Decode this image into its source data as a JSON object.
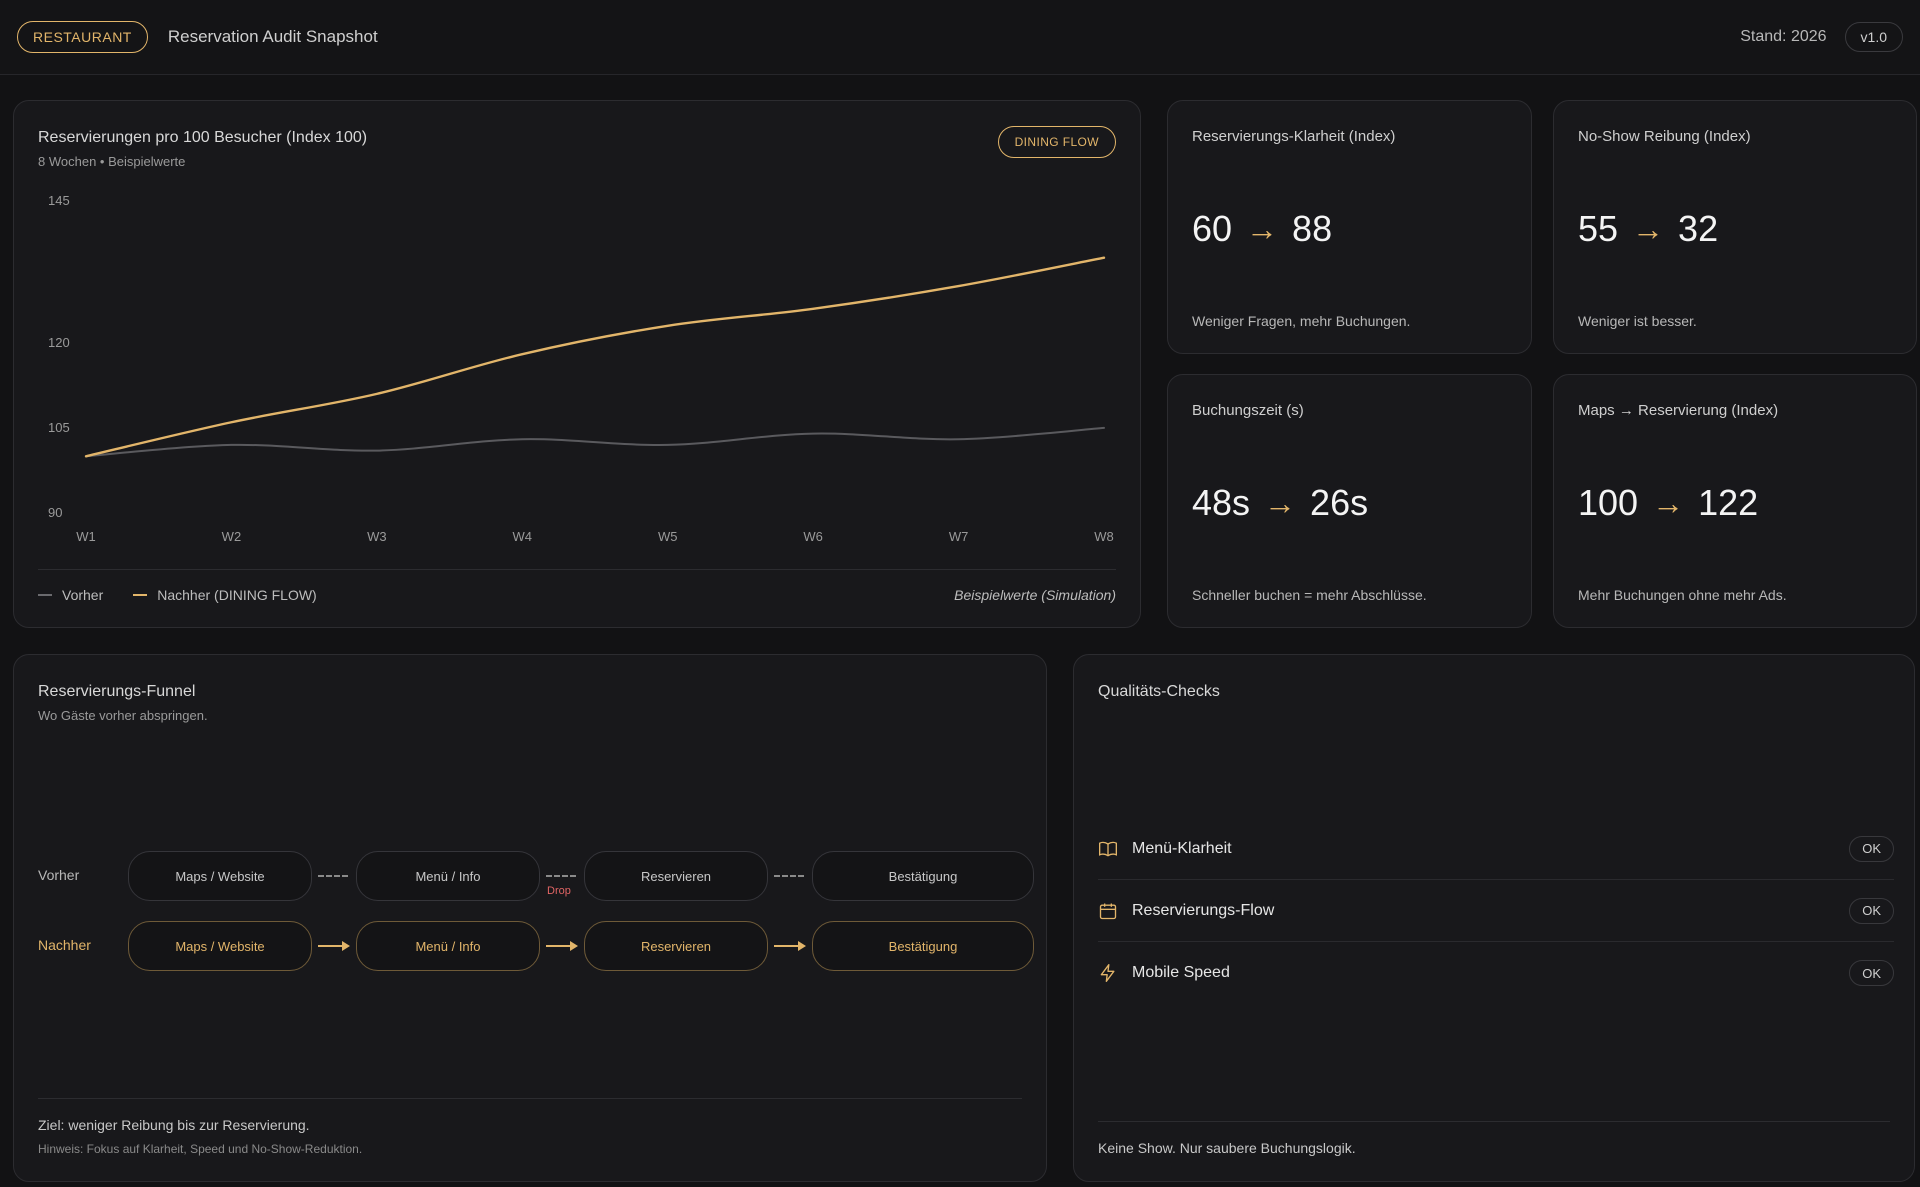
{
  "header": {
    "badge": "RESTAURANT",
    "title": "Reservation Audit Snapshot",
    "stand": "Stand: 2026",
    "version": "v1.0"
  },
  "chart": {
    "title": "Reservierungen pro 100 Besucher (Index 100)",
    "subtitle": "8 Wochen • Beispielwerte",
    "badge": "DINING FLOW",
    "legend_before": "Vorher",
    "legend_after": "Nachher (DINING FLOW)",
    "note": "Beispielwerte (Simulation)"
  },
  "chart_data": {
    "type": "line",
    "title": "Reservierungen pro 100 Besucher (Index 100)",
    "x": [
      "W1",
      "W2",
      "W3",
      "W4",
      "W5",
      "W6",
      "W7",
      "W8"
    ],
    "yticks": [
      145,
      120,
      105,
      90
    ],
    "ylim": [
      90,
      145
    ],
    "series": [
      {
        "name": "Vorher",
        "color": "#5a5a5e",
        "values": [
          100,
          102,
          101,
          103,
          102,
          104,
          103,
          105
        ]
      },
      {
        "name": "Nachher (DINING FLOW)",
        "color": "#e2b56a",
        "values": [
          100,
          106,
          111,
          118,
          123,
          126,
          130,
          135
        ]
      }
    ],
    "grid": false,
    "legend": "bottom-left"
  },
  "kpis": [
    {
      "title": "Reservierungs-Klarheit (Index)",
      "from": "60",
      "to": "88",
      "desc": "Weniger Fragen, mehr Buchungen."
    },
    {
      "title": "No-Show Reibung (Index)",
      "from": "55",
      "to": "32",
      "desc": "Weniger ist besser."
    },
    {
      "title": "Buchungszeit (s)",
      "from": "48s",
      "to": "26s",
      "desc": "Schneller buchen = mehr Abschlüsse."
    },
    {
      "title": "Maps → Reservierung (Index)",
      "from": "100",
      "to": "122",
      "desc": "Mehr Buchungen ohne mehr Ads."
    }
  ],
  "funnel": {
    "title": "Reservierungs-Funnel",
    "subtitle": "Wo Gäste vorher abspringen.",
    "row_before": "Vorher",
    "row_after": "Nachher",
    "steps": [
      "Maps / Website",
      "Menü / Info",
      "Reservieren",
      "Bestätigung"
    ],
    "drop_label": "Drop",
    "goal": "Ziel: weniger Reibung bis zur Reservierung.",
    "hint": "Hinweis: Fokus auf Klarheit, Speed und No-Show-Reduktion."
  },
  "quality": {
    "title": "Qualitäts-Checks",
    "checks": [
      {
        "label": "Menü-Klarheit",
        "status": "OK",
        "icon": "book-icon"
      },
      {
        "label": "Reservierungs-Flow",
        "status": "OK",
        "icon": "calendar-icon"
      },
      {
        "label": "Mobile Speed",
        "status": "OK",
        "icon": "lightning-icon"
      }
    ],
    "footer": "Keine Show. Nur saubere Buchungslogik."
  }
}
